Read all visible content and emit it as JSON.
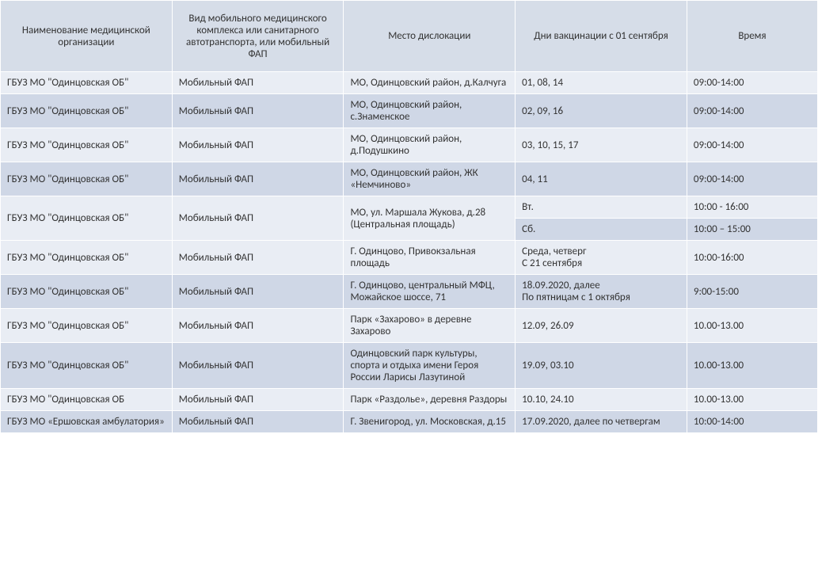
{
  "colors": {
    "header_bg": "#d6dde8",
    "row_odd_bg": "#e9edf4",
    "row_even_bg": "#cfd7e6",
    "border": "#ffffff",
    "text": "#333333"
  },
  "typography": {
    "font_family": "Calibri, Arial, sans-serif",
    "font_size": 13
  },
  "table": {
    "columns": [
      "Наименование медицинской организации",
      "Вид мобильного медицинского комплекса или санитарного автотранспорта, или мобильный ФАП",
      "Место дислокации",
      "Дни вакцинации с 01 сентября",
      "Время"
    ],
    "rows": [
      {
        "org": "ГБУЗ МО \"Одинцовская ОБ\"",
        "type": "Мобильный ФАП",
        "loc": "МО, Одинцовский район, д.Калчуга",
        "days": "01, 08, 14",
        "time": "09:00-14:00",
        "stripe": "odd"
      },
      {
        "org": "ГБУЗ МО \"Одинцовская ОБ\"",
        "type": "Мобильный ФАП",
        "loc": "МО, Одинцовский район, с.Знаменское",
        "days": "02, 09, 16",
        "time": "09:00-14:00",
        "stripe": "even"
      },
      {
        "org": "ГБУЗ МО \"Одинцовская ОБ\"",
        "type": "Мобильный ФАП",
        "loc": "МО, Одинцовский район, д.Подушкино",
        "days": "03, 10, 15, 17",
        "time": "09:00-14:00",
        "stripe": "odd"
      },
      {
        "org": "ГБУЗ МО \"Одинцовская ОБ\"",
        "type": "Мобильный ФАП",
        "loc": "МО, Одинцовский район, ЖК «Немчиново»",
        "days": "04,  11",
        "time": "09:00-14:00",
        "stripe": "even"
      },
      {
        "org": "ГБУЗ МО \"Одинцовская ОБ\"",
        "type": "Мобильный ФАП",
        "loc": "МО, ул. Маршала Жукова, д.28 (Центральная площадь)",
        "days_a": "Вт.",
        "time_a": "10:00 - 16:00",
        "days_b": "Сб.",
        "time_b": "10:00 – 15:00",
        "merged": true,
        "stripe_a": "odd",
        "stripe_b": "even"
      },
      {
        "org": "ГБУЗ МО \"Одинцовская ОБ\"",
        "type": "Мобильный ФАП",
        "loc": "Г. Одинцово, Привокзальная площадь",
        "days": "Среда, четверг\nС 21 сентября",
        "time": "10:00-16:00",
        "stripe": "odd"
      },
      {
        "org": "ГБУЗ МО \"Одинцовская ОБ\"",
        "type": "Мобильный ФАП",
        "loc": "Г. Одинцово, центральный МФЦ,\nМожайское шоссе, 71",
        "days": "18.09.2020, далее\nПо пятницам с 1 октября",
        "time": "9:00-15:00",
        "stripe": "even"
      },
      {
        "org": "ГБУЗ МО \"Одинцовская ОБ\"",
        "type": "Мобильный ФАП",
        "loc": "Парк «Захарово» в деревне Захарово",
        "days": "12.09, 26.09",
        "time": "10.00-13.00",
        "stripe": "odd"
      },
      {
        "org": "ГБУЗ МО \"Одинцовская ОБ\"",
        "type": "Мобильный ФАП",
        "loc": "Одинцовский парк культуры, спорта и отдыха имени Героя России Ларисы Лазутиной",
        "days": "19.09, 03.10",
        "time": " 10.00-13.00",
        "stripe": "even"
      },
      {
        "org": "ГБУЗ МО \"Одинцовская ОБ",
        "type": "Мобильный ФАП",
        "loc": "Парк  «Раздолье», деревня Раздоры",
        "days": "10.10, 24.10",
        "time": " 10.00-13.00",
        "stripe": "odd"
      },
      {
        "org": "ГБУЗ МО «Ершовская амбулатория»",
        "type": "Мобильный ФАП",
        "loc": "Г. Звенигород, ул. Московская, д.15",
        "days": "17.09.2020, далее по четвергам",
        "time": "10:00-14:00",
        "stripe": "even"
      }
    ]
  }
}
